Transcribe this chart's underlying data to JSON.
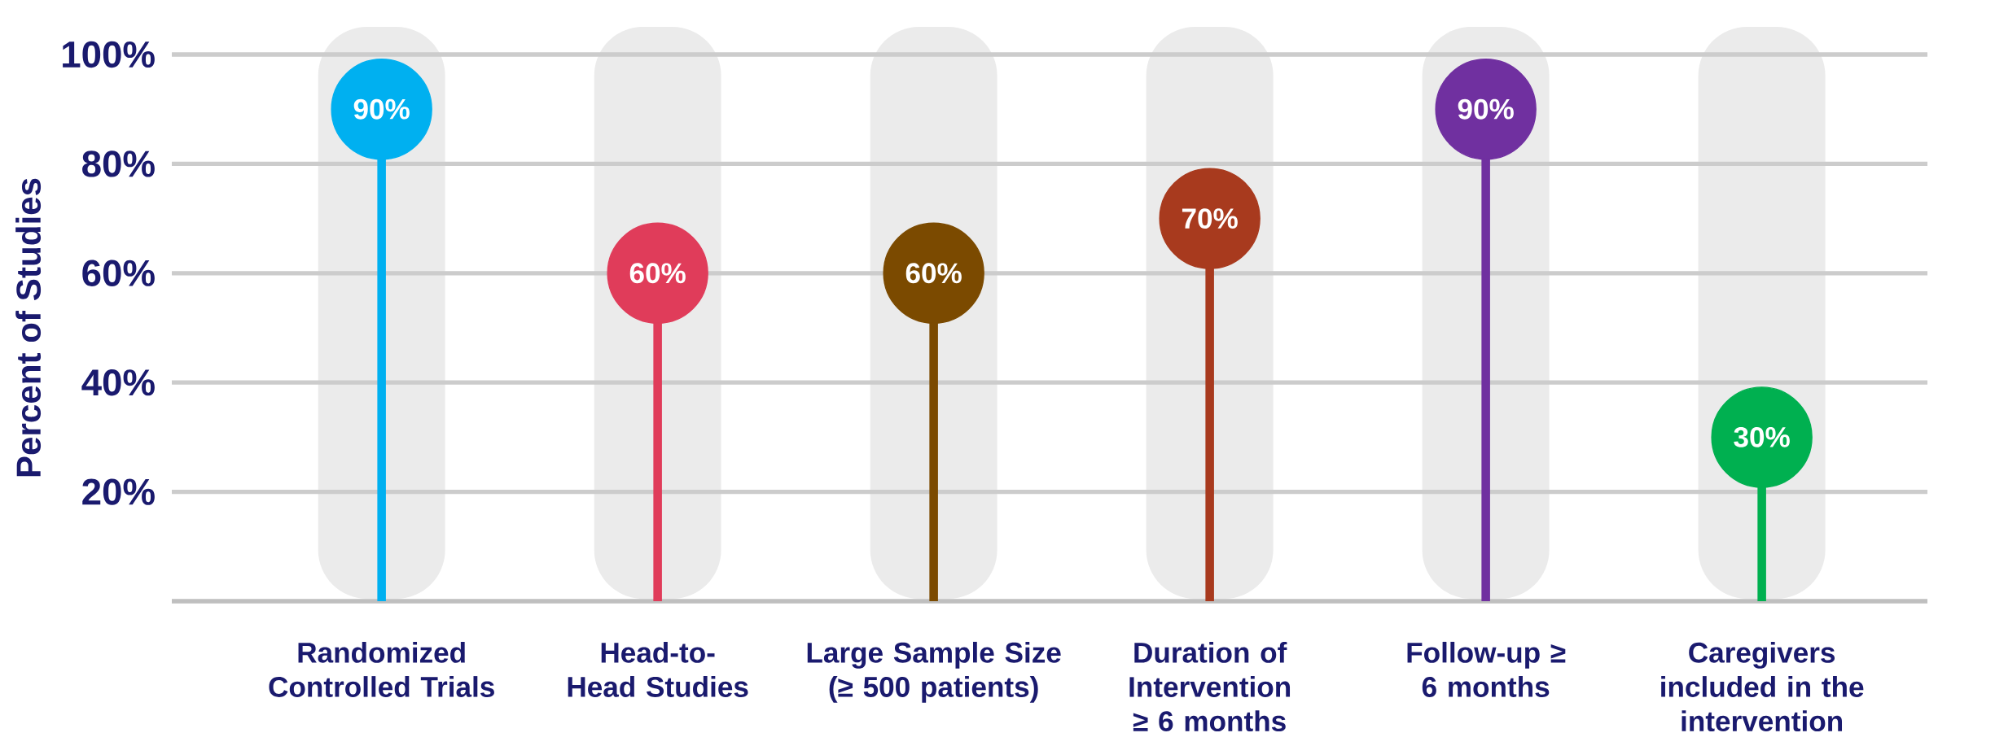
{
  "chart_data": {
    "type": "lollipop",
    "ylabel": "Percent of Studies",
    "categories": [
      "Randomized Controlled Trials",
      "Head-to-Head Studies",
      "Large Sample Size (≥ 500 patients)",
      "Duration of Intervention ≥ 6 months",
      "Follow-up ≥ 6 months",
      "Caregivers included in the intervention"
    ],
    "values": [
      90,
      60,
      60,
      70,
      90,
      30
    ],
    "value_labels": [
      "90%",
      "60%",
      "60%",
      "70%",
      "90%",
      "30%"
    ],
    "colors": [
      "#00b0f0",
      "#e03c5a",
      "#7b4a00",
      "#a83a1e",
      "#7030a0",
      "#00b050"
    ],
    "marker": "circle",
    "ylim": [
      0,
      100
    ],
    "yticks": [
      {
        "value": 20,
        "label": "20%"
      },
      {
        "value": 40,
        "label": "40%"
      },
      {
        "value": 60,
        "label": "60%"
      },
      {
        "value": 80,
        "label": "80%"
      },
      {
        "value": 100,
        "label": "100%"
      }
    ],
    "grid": "y"
  }
}
